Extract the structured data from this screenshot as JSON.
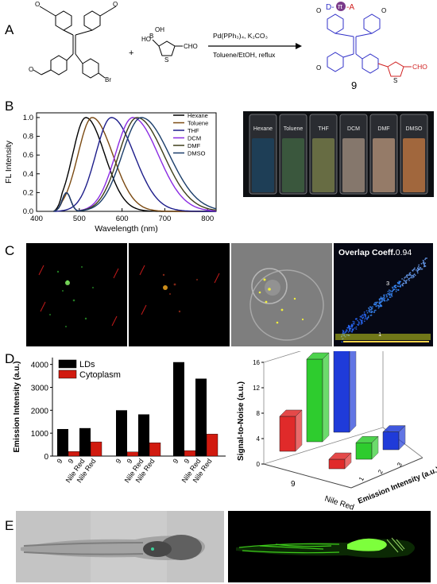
{
  "panels": {
    "a": "A",
    "b": "B",
    "c": "C",
    "d": "D",
    "e": "E"
  },
  "reaction": {
    "reagents_line1": "Pd(PPh₃)₄, K₂CO₃",
    "reagents_line2": "Toluene/EtOH, reflux",
    "plus": "+",
    "boronic_label": "HO-B-OH",
    "br": "Br",
    "cho": "CHO",
    "cho_product": "CHO",
    "compound": "9",
    "dpa_d": "D-",
    "dpa_pi": "π",
    "dpa_a": "-A",
    "s": "S",
    "ho": "HO",
    "oh": "OH",
    "b": "B"
  },
  "vials": {
    "labels": [
      "Hexane",
      "Toluene",
      "THF",
      "DCM",
      "DMF",
      "DMSO"
    ],
    "colors": [
      "#1d3f58",
      "#3b5a3e",
      "#6a7044",
      "#8a7b70",
      "#9b7f6c",
      "#a86a3e"
    ]
  },
  "coloc": {
    "label": "Overlap Coeff.",
    "value": "0.94",
    "tick3": "3",
    "tick1": "1"
  },
  "chart_data": [
    {
      "type": "line",
      "xlabel": "Wavelength (nm)",
      "ylabel": "FL Intensity",
      "xlim": [
        400,
        820
      ],
      "ylim": [
        0,
        1.05
      ],
      "xticks": [
        400,
        500,
        600,
        700,
        800
      ],
      "yticks": [
        0.0,
        0.2,
        0.4,
        0.6,
        0.8,
        1.0
      ],
      "legend_position": "top-right",
      "series": [
        {
          "name": "Hexane",
          "color": "#000000",
          "peak": 515,
          "width": 60
        },
        {
          "name": "Toluene",
          "color": "#7b4a12",
          "peak": 530,
          "width": 65
        },
        {
          "name": "THF",
          "color": "#1d1d8a",
          "peak": 575,
          "width": 72
        },
        {
          "name": "DCM",
          "color": "#8a2be2",
          "peak": 625,
          "width": 80
        },
        {
          "name": "DMF",
          "color": "#3e3e1a",
          "peak": 635,
          "width": 84
        },
        {
          "name": "DMSO",
          "color": "#1a3d6a",
          "peak": 645,
          "width": 88
        }
      ]
    },
    {
      "type": "bar",
      "ylabel": "Emission Intensity (a.u.)",
      "ylim": [
        0,
        4300
      ],
      "yticks": [
        0,
        1000,
        2000,
        3000,
        4000
      ],
      "legend_position": "top-left",
      "series": [
        {
          "name": "LDs",
          "color": "#000000"
        },
        {
          "name": "Cytoplasm",
          "color": "#d11a0f"
        }
      ],
      "groups": [
        {
          "labels": [
            "9",
            "Nile Red"
          ],
          "lds": [
            1180,
            1220
          ],
          "cyto": [
            200,
            620
          ]
        },
        {
          "labels": [
            "9",
            "Nile Red"
          ],
          "lds": [
            2000,
            1820
          ],
          "cyto": [
            180,
            580
          ]
        },
        {
          "labels": [
            "9",
            "Nile Red"
          ],
          "lds": [
            4100,
            3380
          ],
          "cyto": [
            240,
            960
          ]
        }
      ],
      "xlabels": [
        "9",
        "9",
        "Nile Red",
        "Nile Red",
        "9",
        "9",
        "Nile Red",
        "Nile Red",
        "9",
        "9",
        "Nile Red",
        "Nile Red"
      ]
    },
    {
      "type": "bar",
      "subtype": "3d-bar",
      "ylabel": "Signal-to-Noise (a.u.)",
      "xlabel": "Emission Intensity (a.u.)",
      "zticks": [
        0,
        4,
        8,
        12,
        16
      ],
      "xticks": [
        "1",
        "2",
        "3"
      ],
      "rows": [
        "9",
        "Nile Red"
      ],
      "values": {
        "9": [
          5.5,
          13.0,
          16.2
        ],
        "Nile Red": [
          1.5,
          2.6,
          2.8
        ]
      },
      "colors": [
        "#e02a2a",
        "#2ecc2e",
        "#1f3bd9"
      ]
    }
  ]
}
